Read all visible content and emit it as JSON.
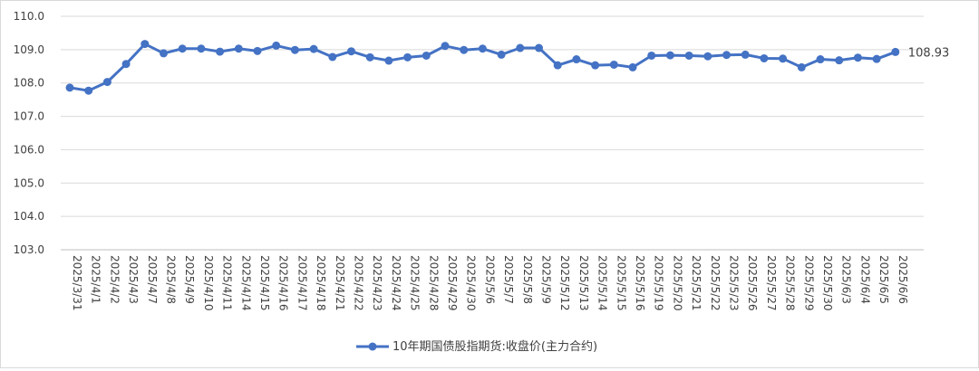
{
  "chart_data": {
    "type": "line",
    "title": "",
    "xlabel": "",
    "ylabel": "",
    "ylim": [
      103.0,
      110.0
    ],
    "yticks": [
      "103.0",
      "104.0",
      "105.0",
      "106.0",
      "107.0",
      "108.0",
      "109.0",
      "110.0"
    ],
    "grid": true,
    "legend_position": "bottom-center",
    "line_color": "#4472C4",
    "categories": [
      "2025/3/31",
      "2025/4/1",
      "2025/4/2",
      "2025/4/3",
      "2025/4/7",
      "2025/4/8",
      "2025/4/9",
      "2025/4/10",
      "2025/4/11",
      "2025/4/14",
      "2025/4/15",
      "2025/4/16",
      "2025/4/17",
      "2025/4/18",
      "2025/4/21",
      "2025/4/22",
      "2025/4/23",
      "2025/4/24",
      "2025/4/25",
      "2025/4/28",
      "2025/4/29",
      "2025/4/30",
      "2025/5/6",
      "2025/5/7",
      "2025/5/8",
      "2025/5/9",
      "2025/5/12",
      "2025/5/13",
      "2025/5/14",
      "2025/5/15",
      "2025/5/16",
      "2025/5/19",
      "2025/5/20",
      "2025/5/21",
      "2025/5/22",
      "2025/5/23",
      "2025/5/26",
      "2025/5/27",
      "2025/5/28",
      "2025/5/29",
      "2025/5/30",
      "2025/6/3",
      "2025/6/4",
      "2025/6/5",
      "2025/6/6"
    ],
    "series": [
      {
        "name": "10年期国债股指期货:收盘价(主力合约)",
        "values": [
          107.86,
          107.77,
          108.03,
          108.57,
          109.17,
          108.89,
          109.03,
          109.03,
          108.94,
          109.03,
          108.96,
          109.12,
          108.99,
          109.02,
          108.78,
          108.95,
          108.77,
          108.67,
          108.77,
          108.82,
          109.11,
          108.99,
          109.03,
          108.85,
          109.05,
          109.05,
          108.53,
          108.71,
          108.53,
          108.55,
          108.47,
          108.82,
          108.83,
          108.82,
          108.8,
          108.84,
          108.85,
          108.74,
          108.73,
          108.47,
          108.71,
          108.68,
          108.76,
          108.72,
          108.93
        ]
      }
    ],
    "annotation": "108.93"
  }
}
